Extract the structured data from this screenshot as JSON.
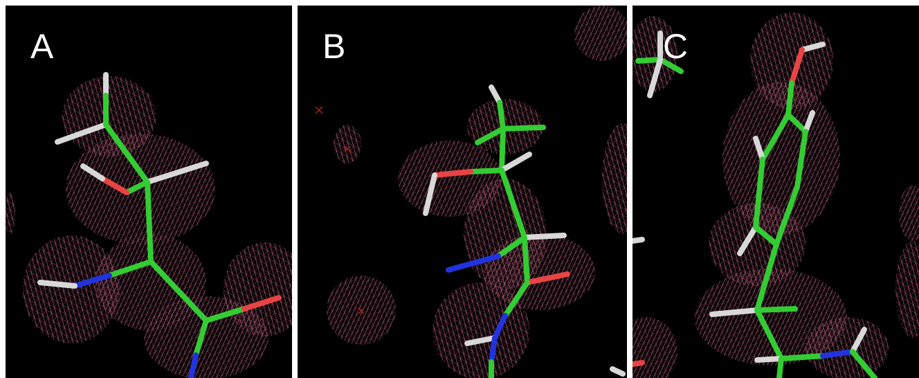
{
  "panels": [
    {
      "label": "A"
    },
    {
      "label": "B"
    },
    {
      "label": "C"
    }
  ],
  "colors": {
    "background": "#000000",
    "mesh": "#b45a78",
    "carbon": "#33cc33",
    "oxygen": "#e84444",
    "nitrogen": "#2233dd",
    "hydrogen": "#d8d8d8",
    "divider": "#ffffff"
  },
  "atom_icons": [
    "carbon-bond",
    "oxygen-bond",
    "nitrogen-bond",
    "hydrogen-bond"
  ]
}
